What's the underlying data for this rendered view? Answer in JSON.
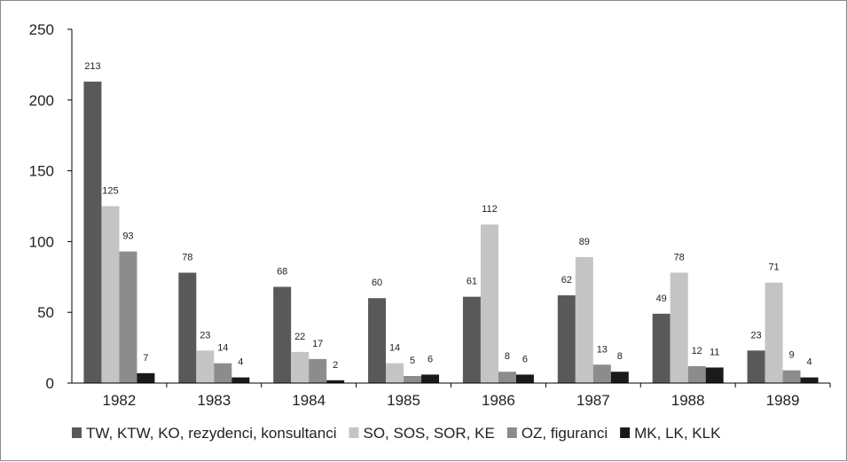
{
  "chart_data": {
    "type": "bar",
    "categories": [
      "1982",
      "1983",
      "1984",
      "1985",
      "1986",
      "1987",
      "1988",
      "1989"
    ],
    "series": [
      {
        "name": "TW, KTW, KO, rezydenci, konsultanci",
        "color": "#595959",
        "values": [
          213,
          78,
          68,
          60,
          61,
          62,
          49,
          23
        ]
      },
      {
        "name": "SO, SOS, SOR, KE",
        "color": "#c4c4c4",
        "values": [
          125,
          23,
          22,
          14,
          112,
          89,
          78,
          71
        ]
      },
      {
        "name": "OZ, figuranci",
        "color": "#8c8c8c",
        "values": [
          93,
          14,
          17,
          5,
          8,
          13,
          12,
          9
        ]
      },
      {
        "name": "MK, LK, KLK",
        "color": "#1a1a1a",
        "values": [
          7,
          4,
          2,
          6,
          6,
          8,
          11,
          4
        ]
      }
    ],
    "ylim": [
      0,
      250
    ],
    "yticks": [
      0,
      50,
      100,
      150,
      200,
      250
    ],
    "grid": false,
    "legend": "bottom",
    "title": "",
    "xlabel": "",
    "ylabel": ""
  }
}
